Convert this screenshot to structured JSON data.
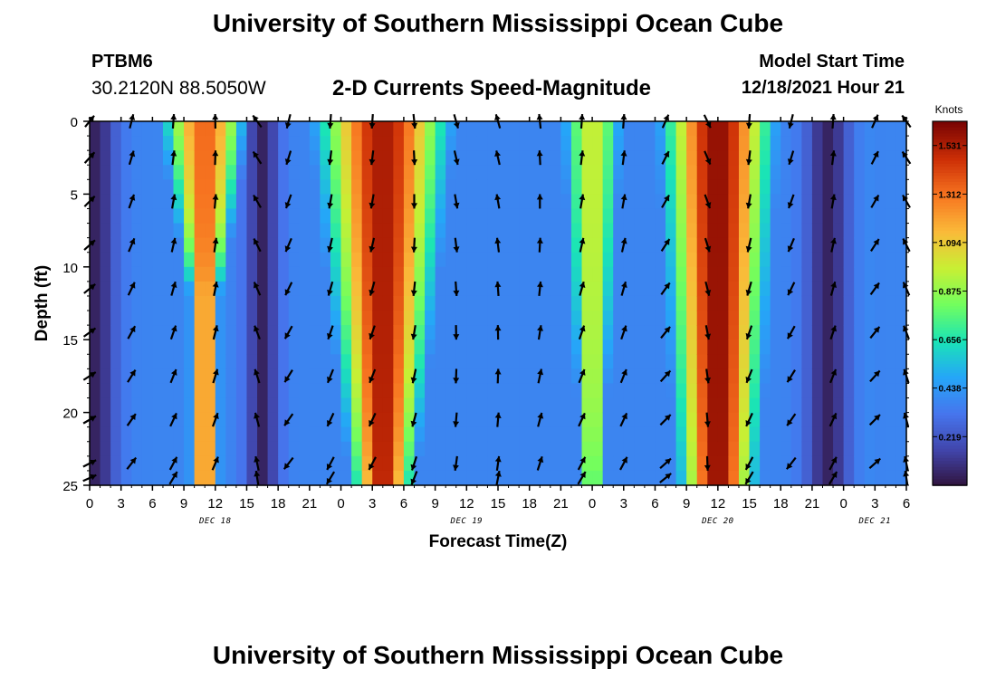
{
  "header": {
    "title": "University of Southern Mississippi Ocean Cube",
    "station": "PTBM6",
    "coords": "30.2120N  88.5050W",
    "subtitle": "2-D Currents Speed-Magnitude",
    "start_label": "Model Start Time",
    "start_value": "12/18/2021 Hour 21"
  },
  "footer": {
    "title": "University of Southern Mississippi Ocean Cube"
  },
  "chart_data": {
    "type": "heatmap",
    "xlabel": "Forecast Time(Z)",
    "ylabel": "Depth (ft)",
    "x_range": [
      0,
      78
    ],
    "y_range": [
      0,
      25
    ],
    "y_ticks": [
      "0",
      "5",
      "10",
      "15",
      "20",
      "25"
    ],
    "x_tick_labels": [
      "0",
      "3",
      "6",
      "9",
      "12",
      "15",
      "18",
      "21",
      "0",
      "3",
      "6",
      "9",
      "12",
      "15",
      "18",
      "21",
      "0",
      "3",
      "6",
      "9",
      "12",
      "15",
      "18",
      "21",
      "0",
      "3",
      "6"
    ],
    "day_labels": [
      {
        "label": "DEC 18",
        "x": 12
      },
      {
        "label": "DEC 19",
        "x": 36
      },
      {
        "label": "DEC 20",
        "x": 60
      },
      {
        "label": "DEC 21",
        "x": 75
      }
    ],
    "colorbar": {
      "units": "Knots",
      "min": 0,
      "max": 1.64,
      "ticks": [
        "1.531",
        "1.312",
        "1.094",
        "0.875",
        "0.656",
        "0.438",
        "0.219"
      ],
      "tick_values": [
        1.531,
        1.312,
        1.094,
        0.875,
        0.656,
        0.438,
        0.219
      ]
    },
    "speed_model": {
      "bumps": [
        {
          "center": 11,
          "amp": 1.35,
          "halfwidth": 4,
          "depth_decay": 0.025
        },
        {
          "center": 28,
          "amp": 1.55,
          "halfwidth": 6,
          "depth_decay": 0.01
        },
        {
          "center": 48,
          "amp": 1.0,
          "halfwidth": 3,
          "depth_decay": 0.012
        },
        {
          "center": 38,
          "amp": 0.35,
          "halfwidth": 4,
          "depth_decay": 0.0
        },
        {
          "center": 60,
          "amp": 1.6,
          "halfwidth": 5,
          "depth_decay": 0.006
        },
        {
          "center": 74,
          "amp": 0.4,
          "halfwidth": 4,
          "depth_decay": 0.0
        }
      ],
      "minima": [
        {
          "center": 16.5,
          "halfwidth": 1.5
        },
        {
          "center": 0.5,
          "halfwidth": 2
        },
        {
          "center": 70.5,
          "halfwidth": 2
        }
      ],
      "background": 0.38
    },
    "arrow_depths": [
      0,
      2.5,
      5.5,
      8.5,
      11.5,
      14.5,
      17.5,
      20.5,
      23.5,
      24.5
    ],
    "arrow_times": [
      0,
      4,
      8,
      12,
      16,
      19,
      23,
      27,
      31,
      35,
      39,
      43,
      47,
      51,
      55,
      59,
      63,
      67,
      71,
      75,
      78
    ],
    "arrow_directions_deg": [
      45,
      20,
      10,
      5,
      330,
      200,
      190,
      190,
      180,
      170,
      350,
      0,
      10,
      10,
      30,
      160,
      190,
      200,
      10,
      30,
      330
    ]
  }
}
